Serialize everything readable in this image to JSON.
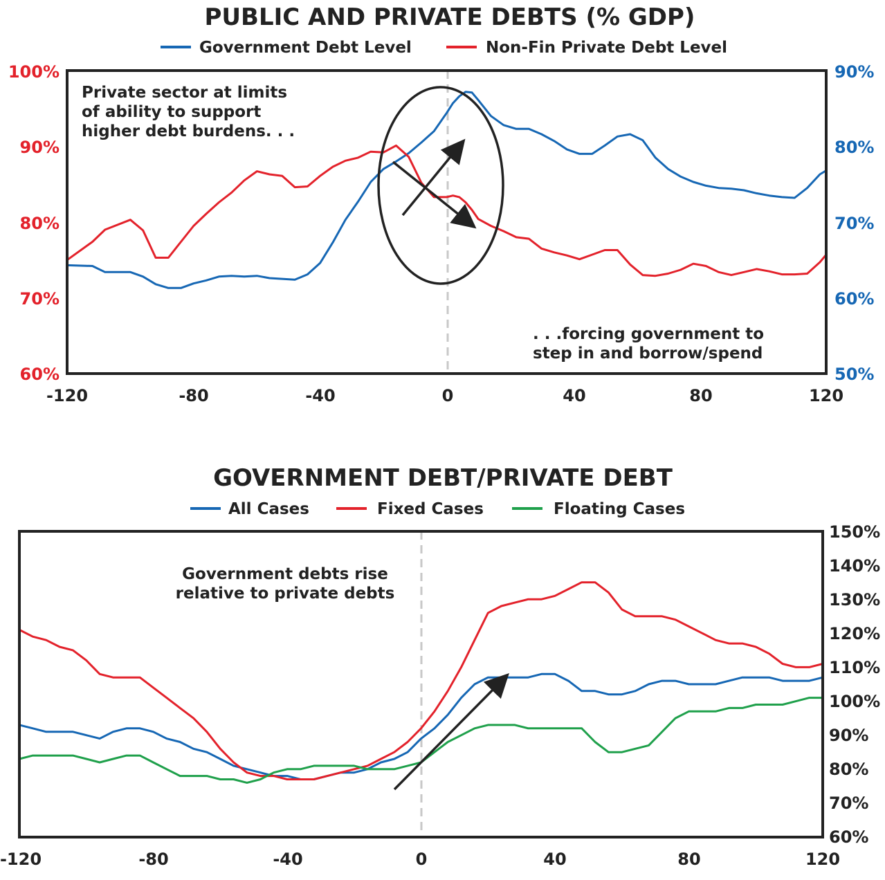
{
  "colors": {
    "blue": "#1667b4",
    "red": "#e3222b",
    "green": "#1fa04b",
    "dark": "#222222",
    "dashed": "#c8c8c8"
  },
  "chart_data": [
    {
      "type": "line",
      "title": "PUBLIC AND PRIVATE DEBTS (% GDP)",
      "x_ticks": [
        "-120",
        "-80",
        "-40",
        "0",
        "40",
        "80",
        "120"
      ],
      "xlim": [
        -120,
        120
      ],
      "y_left": {
        "ticks": [
          "100%",
          "90%",
          "80%",
          "70%",
          "60%"
        ],
        "lim": [
          60,
          100
        ],
        "color": "red"
      },
      "y_right": {
        "ticks": [
          "90%",
          "80%",
          "70%",
          "60%",
          "50%"
        ],
        "lim": [
          50,
          90
        ],
        "color": "blue"
      },
      "series": [
        {
          "name": "Government Debt Level",
          "color": "blue",
          "axis": "right",
          "x": [
            -120,
            -112,
            -108,
            -100,
            -96,
            -92,
            -88,
            -84,
            -80,
            -76,
            -72,
            -68,
            -64,
            -60,
            -56,
            -52,
            -48,
            -44,
            -40,
            -36,
            -32,
            -28,
            -24,
            -20,
            -16,
            -12,
            -8,
            -4,
            0,
            2,
            4,
            6,
            8,
            10,
            14,
            18,
            22,
            26,
            30,
            34,
            38,
            42,
            46,
            50,
            54,
            58,
            62,
            66,
            70,
            74,
            78,
            82,
            86,
            90,
            94,
            98,
            102,
            106,
            110,
            114,
            118,
            120
          ],
          "y": [
            64.3,
            64.2,
            63.4,
            63.4,
            62.8,
            61.8,
            61.3,
            61.3,
            61.9,
            62.3,
            62.8,
            62.9,
            62.8,
            62.9,
            62.6,
            62.5,
            62.4,
            63.1,
            64.6,
            67.3,
            70.3,
            72.7,
            75.3,
            77.0,
            78.0,
            79.1,
            80.5,
            82.0,
            84.4,
            85.7,
            86.6,
            87.2,
            87.1,
            86.1,
            84.0,
            82.8,
            82.3,
            82.3,
            81.6,
            80.7,
            79.6,
            79.0,
            79.0,
            80.1,
            81.3,
            81.6,
            80.8,
            78.5,
            77.0,
            76.0,
            75.3,
            74.8,
            74.5,
            74.4,
            74.2,
            73.8,
            73.5,
            73.3,
            73.2,
            74.5,
            76.3,
            76.8
          ]
        },
        {
          "name": "Non-Fin Private Debt Level",
          "color": "red",
          "axis": "left",
          "x": [
            -120,
            -112,
            -108,
            -100,
            -96,
            -92,
            -88,
            -84,
            -80,
            -76,
            -72,
            -68,
            -64,
            -60,
            -56,
            -52,
            -48,
            -44,
            -40,
            -36,
            -32,
            -28,
            -24,
            -20,
            -16,
            -12,
            -8,
            -4,
            0,
            2,
            4,
            6,
            8,
            10,
            14,
            18,
            22,
            26,
            30,
            34,
            38,
            42,
            46,
            50,
            54,
            58,
            62,
            66,
            70,
            74,
            78,
            82,
            86,
            90,
            94,
            98,
            102,
            106,
            110,
            114,
            118,
            120
          ],
          "y": [
            75.0,
            77.4,
            79.0,
            80.3,
            78.9,
            75.3,
            75.3,
            77.4,
            79.5,
            81.1,
            82.6,
            83.9,
            85.5,
            86.7,
            86.3,
            86.1,
            84.6,
            84.7,
            86.1,
            87.3,
            88.1,
            88.5,
            89.3,
            89.2,
            90.1,
            88.6,
            85.2,
            83.3,
            83.3,
            83.5,
            83.3,
            82.6,
            81.6,
            80.4,
            79.5,
            78.8,
            78.0,
            77.8,
            76.5,
            76.0,
            75.6,
            75.1,
            75.7,
            76.3,
            76.3,
            74.4,
            73.0,
            72.9,
            73.2,
            73.7,
            74.5,
            74.2,
            73.4,
            73.0,
            73.4,
            73.8,
            73.5,
            73.1,
            73.1,
            73.2,
            74.7,
            75.7
          ]
        }
      ],
      "annotations": [
        [
          "Private sector at limits",
          "of ability to support",
          "higher debt burdens. . ."
        ],
        [
          ". . .forcing government to",
          "step in and borrow/spend"
        ]
      ]
    },
    {
      "type": "line",
      "title": "GOVERNMENT DEBT/PRIVATE DEBT",
      "x_ticks": [
        "-120",
        "-80",
        "-40",
        "0",
        "40",
        "80",
        "120"
      ],
      "xlim": [
        -120,
        120
      ],
      "y_right": {
        "ticks": [
          "150%",
          "140%",
          "130%",
          "120%",
          "110%",
          "100%",
          "90%",
          "80%",
          "70%",
          "60%"
        ],
        "lim": [
          60,
          150
        ]
      },
      "series": [
        {
          "name": "All Cases",
          "color": "blue",
          "x": [
            -120,
            -116,
            -112,
            -108,
            -104,
            -100,
            -96,
            -92,
            -88,
            -84,
            -80,
            -76,
            -72,
            -68,
            -64,
            -60,
            -56,
            -52,
            -48,
            -44,
            -40,
            -36,
            -32,
            -28,
            -24,
            -20,
            -16,
            -12,
            -8,
            -4,
            0,
            4,
            8,
            12,
            16,
            20,
            24,
            28,
            32,
            36,
            40,
            44,
            48,
            52,
            56,
            60,
            64,
            68,
            72,
            76,
            80,
            84,
            88,
            92,
            96,
            100,
            104,
            108,
            112,
            116,
            120
          ],
          "y": [
            93,
            92,
            91,
            91,
            91,
            90,
            89,
            91,
            92,
            92,
            91,
            89,
            88,
            86,
            85,
            83,
            81,
            80,
            79,
            78,
            78,
            77,
            77,
            78,
            79,
            79,
            80,
            82,
            83,
            85,
            89,
            92,
            96,
            101,
            105,
            107,
            107,
            107,
            107,
            108,
            108,
            106,
            103,
            103,
            102,
            102,
            103,
            105,
            106,
            106,
            105,
            105,
            105,
            106,
            107,
            107,
            107,
            106,
            106,
            106,
            107
          ]
        },
        {
          "name": "Fixed Cases",
          "color": "red",
          "x": [
            -120,
            -116,
            -112,
            -108,
            -104,
            -100,
            -96,
            -92,
            -88,
            -84,
            -80,
            -76,
            -72,
            -68,
            -64,
            -60,
            -56,
            -52,
            -48,
            -44,
            -40,
            -36,
            -32,
            -28,
            -24,
            -20,
            -16,
            -12,
            -8,
            -4,
            0,
            4,
            8,
            12,
            16,
            20,
            24,
            28,
            32,
            36,
            40,
            44,
            48,
            52,
            56,
            60,
            64,
            68,
            72,
            76,
            80,
            84,
            88,
            92,
            96,
            100,
            104,
            108,
            112,
            116,
            120
          ],
          "y": [
            121,
            119,
            118,
            116,
            115,
            112,
            108,
            107,
            107,
            107,
            104,
            101,
            98,
            95,
            91,
            86,
            82,
            79,
            78,
            78,
            77,
            77,
            77,
            78,
            79,
            80,
            81,
            83,
            85,
            88,
            92,
            97,
            103,
            110,
            118,
            126,
            128,
            129,
            130,
            130,
            131,
            133,
            135,
            135,
            132,
            127,
            125,
            125,
            125,
            124,
            122,
            120,
            118,
            117,
            117,
            116,
            114,
            111,
            110,
            110,
            111
          ]
        },
        {
          "name": "Floating Cases",
          "color": "green",
          "x": [
            -120,
            -116,
            -112,
            -108,
            -104,
            -100,
            -96,
            -92,
            -88,
            -84,
            -80,
            -76,
            -72,
            -68,
            -64,
            -60,
            -56,
            -52,
            -48,
            -44,
            -40,
            -36,
            -32,
            -28,
            -24,
            -20,
            -16,
            -12,
            -8,
            -4,
            0,
            4,
            8,
            12,
            16,
            20,
            24,
            28,
            32,
            36,
            40,
            44,
            48,
            52,
            56,
            60,
            64,
            68,
            72,
            76,
            80,
            84,
            88,
            92,
            96,
            100,
            104,
            108,
            112,
            116,
            120
          ],
          "y": [
            83,
            84,
            84,
            84,
            84,
            83,
            82,
            83,
            84,
            84,
            82,
            80,
            78,
            78,
            78,
            77,
            77,
            76,
            77,
            79,
            80,
            80,
            81,
            81,
            81,
            81,
            80,
            80,
            80,
            81,
            82,
            85,
            88,
            90,
            92,
            93,
            93,
            93,
            92,
            92,
            92,
            92,
            92,
            88,
            85,
            85,
            86,
            87,
            91,
            95,
            97,
            97,
            97,
            98,
            98,
            99,
            99,
            99,
            100,
            101,
            101
          ]
        }
      ],
      "annotations": [
        [
          "Government debts rise",
          "relative to private debts"
        ]
      ]
    }
  ]
}
